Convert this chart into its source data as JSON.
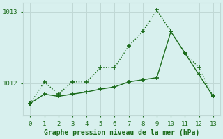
{
  "line1_x": [
    0,
    1,
    2,
    3,
    4,
    5,
    6,
    7,
    8,
    9,
    10,
    11,
    12,
    13
  ],
  "line1_y": [
    1011.72,
    1012.02,
    1011.85,
    1012.02,
    1012.02,
    1012.22,
    1012.22,
    1012.52,
    1012.72,
    1013.02,
    1012.72,
    1012.42,
    1012.22,
    1011.82
  ],
  "line2_x": [
    0,
    1,
    2,
    3,
    4,
    5,
    6,
    7,
    8,
    9,
    10,
    11,
    12,
    13
  ],
  "line2_y": [
    1011.72,
    1011.85,
    1011.82,
    1011.85,
    1011.88,
    1011.92,
    1011.95,
    1012.02,
    1012.05,
    1012.08,
    1012.72,
    1012.42,
    1012.12,
    1011.82
  ],
  "line_color": "#1a6b1a",
  "bg_color": "#d8f0ee",
  "grid_color": "#c0d8d5",
  "xlabel": "Graphe pression niveau de la mer (hPa)",
  "yticks": [
    1012,
    1013
  ],
  "xlim": [
    -0.5,
    13.5
  ],
  "ylim": [
    1011.55,
    1013.12
  ],
  "xlabel_color": "#1a6b1a"
}
